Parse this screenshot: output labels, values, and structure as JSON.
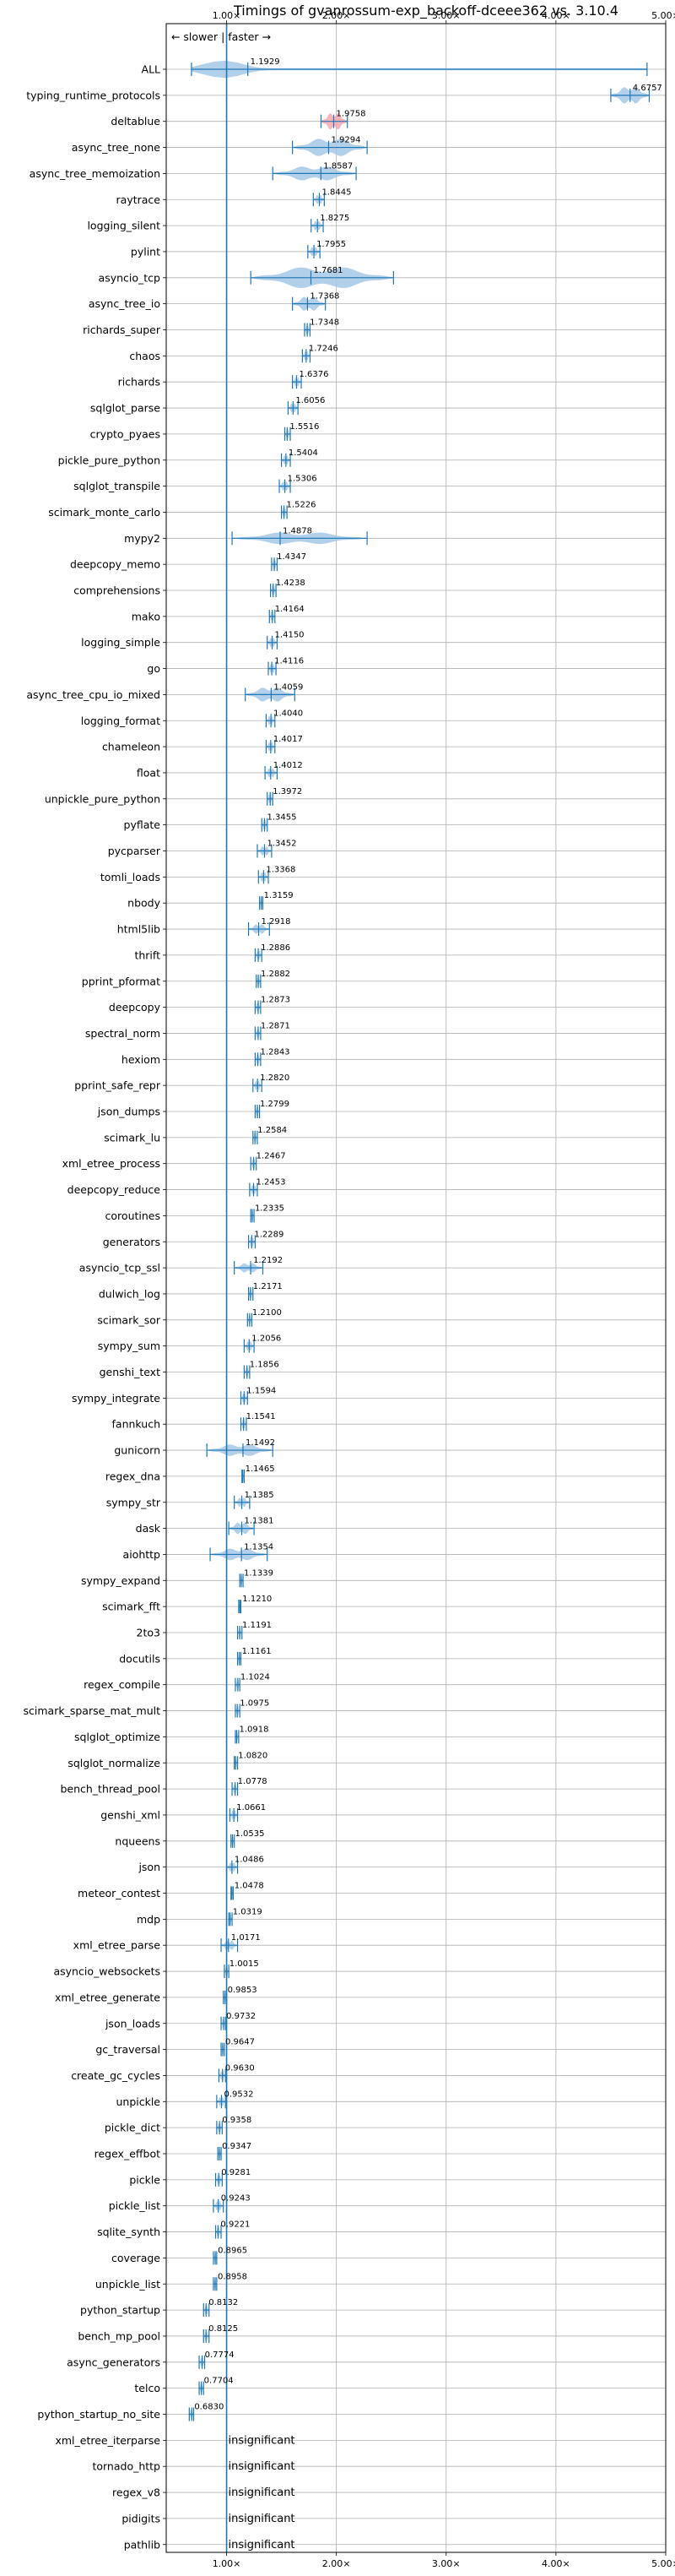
{
  "chart_data": {
    "type": "violin",
    "title": "Timings of gvanrossum-exp_backoff-dceee362 vs. 3.10.4",
    "direction_label": "← slower | faster →",
    "xlim": [
      0.45,
      5.0
    ],
    "xticks": [
      1.0,
      2.0,
      3.0,
      4.0,
      5.0
    ],
    "xtick_labels": [
      "1.00×",
      "2.00×",
      "3.00×",
      "4.00×",
      "5.00×"
    ],
    "reference_line": 1.0,
    "insignificant_label": "insignificant",
    "colors": {
      "violin": "#a6c8e6",
      "line": "#1f77b4",
      "highlight": "#f4a6ae",
      "grid": "#b0b0b0"
    },
    "benchmarks": [
      {
        "name": "ALL",
        "value": 1.1929,
        "label": "1.1929",
        "min": 0.68,
        "max": 4.83,
        "w": 0.7,
        "kind": "all"
      },
      {
        "name": "typing_runtime_protocols",
        "value": 4.6757,
        "label": "4.6757",
        "min": 4.5,
        "max": 4.85,
        "w": 0.7
      },
      {
        "name": "deltablue",
        "value": 1.9758,
        "label": "1.9758",
        "min": 1.86,
        "max": 2.1,
        "w": 0.7,
        "highlight": true
      },
      {
        "name": "async_tree_none",
        "value": 1.9294,
        "label": "1.9294",
        "min": 1.6,
        "max": 2.28,
        "w": 0.75
      },
      {
        "name": "async_tree_memoization",
        "value": 1.8587,
        "label": "1.8587",
        "min": 1.42,
        "max": 2.18,
        "w": 0.6
      },
      {
        "name": "raytrace",
        "value": 1.8445,
        "label": "1.8445",
        "min": 1.79,
        "max": 1.89,
        "w": 0.4
      },
      {
        "name": "logging_silent",
        "value": 1.8275,
        "label": "1.8275",
        "min": 1.77,
        "max": 1.88,
        "w": 0.4
      },
      {
        "name": "pylint",
        "value": 1.7955,
        "label": "1.7955",
        "min": 1.74,
        "max": 1.85,
        "w": 0.4
      },
      {
        "name": "asyncio_tcp",
        "value": 1.7681,
        "label": "1.7681",
        "min": 1.22,
        "max": 2.52,
        "w": 0.9
      },
      {
        "name": "async_tree_io",
        "value": 1.7368,
        "label": "1.7368",
        "min": 1.6,
        "max": 1.9,
        "w": 0.6
      },
      {
        "name": "richards_super",
        "value": 1.7348,
        "label": "1.7348",
        "min": 1.71,
        "max": 1.76,
        "w": 0.4
      },
      {
        "name": "chaos",
        "value": 1.7246,
        "label": "1.7246",
        "min": 1.69,
        "max": 1.76,
        "w": 0.4
      },
      {
        "name": "richards",
        "value": 1.6376,
        "label": "1.6376",
        "min": 1.6,
        "max": 1.68,
        "w": 0.4
      },
      {
        "name": "sqlglot_parse",
        "value": 1.6056,
        "label": "1.6056",
        "min": 1.56,
        "max": 1.65,
        "w": 0.4
      },
      {
        "name": "crypto_pyaes",
        "value": 1.5516,
        "label": "1.5516",
        "min": 1.53,
        "max": 1.58,
        "w": 0.4
      },
      {
        "name": "pickle_pure_python",
        "value": 1.5404,
        "label": "1.5404",
        "min": 1.5,
        "max": 1.58,
        "w": 0.4
      },
      {
        "name": "sqlglot_transpile",
        "value": 1.5306,
        "label": "1.5306",
        "min": 1.48,
        "max": 1.58,
        "w": 0.4
      },
      {
        "name": "scimark_monte_carlo",
        "value": 1.5226,
        "label": "1.5226",
        "min": 1.5,
        "max": 1.55,
        "w": 0.4
      },
      {
        "name": "mypy2",
        "value": 1.4878,
        "label": "1.4878",
        "min": 1.05,
        "max": 2.28,
        "w": 0.5
      },
      {
        "name": "deepcopy_memo",
        "value": 1.4347,
        "label": "1.4347",
        "min": 1.41,
        "max": 1.46,
        "w": 0.4
      },
      {
        "name": "comprehensions",
        "value": 1.4238,
        "label": "1.4238",
        "min": 1.4,
        "max": 1.45,
        "w": 0.4
      },
      {
        "name": "mako",
        "value": 1.4164,
        "label": "1.4164",
        "min": 1.39,
        "max": 1.44,
        "w": 0.4
      },
      {
        "name": "logging_simple",
        "value": 1.415,
        "label": "1.4150",
        "min": 1.37,
        "max": 1.46,
        "w": 0.4
      },
      {
        "name": "go",
        "value": 1.4116,
        "label": "1.4116",
        "min": 1.38,
        "max": 1.45,
        "w": 0.4
      },
      {
        "name": "async_tree_cpu_io_mixed",
        "value": 1.4059,
        "label": "1.4059",
        "min": 1.17,
        "max": 1.62,
        "w": 0.6
      },
      {
        "name": "logging_format",
        "value": 1.404,
        "label": "1.4040",
        "min": 1.36,
        "max": 1.44,
        "w": 0.4
      },
      {
        "name": "chameleon",
        "value": 1.4017,
        "label": "1.4017",
        "min": 1.36,
        "max": 1.44,
        "w": 0.4
      },
      {
        "name": "float",
        "value": 1.4012,
        "label": "1.4012",
        "min": 1.35,
        "max": 1.46,
        "w": 0.4
      },
      {
        "name": "unpickle_pure_python",
        "value": 1.3972,
        "label": "1.3972",
        "min": 1.37,
        "max": 1.42,
        "w": 0.4
      },
      {
        "name": "pyflate",
        "value": 1.3455,
        "label": "1.3455",
        "min": 1.32,
        "max": 1.37,
        "w": 0.4
      },
      {
        "name": "pycparser",
        "value": 1.3452,
        "label": "1.3452",
        "min": 1.28,
        "max": 1.41,
        "w": 0.4
      },
      {
        "name": "tomli_loads",
        "value": 1.3368,
        "label": "1.3368",
        "min": 1.29,
        "max": 1.38,
        "w": 0.4
      },
      {
        "name": "nbody",
        "value": 1.3159,
        "label": "1.3159",
        "min": 1.3,
        "max": 1.33,
        "w": 0.4
      },
      {
        "name": "html5lib",
        "value": 1.2918,
        "label": "1.2918",
        "min": 1.2,
        "max": 1.39,
        "w": 0.4
      },
      {
        "name": "thrift",
        "value": 1.2886,
        "label": "1.2886",
        "min": 1.26,
        "max": 1.32,
        "w": 0.4
      },
      {
        "name": "pprint_pformat",
        "value": 1.2882,
        "label": "1.2882",
        "min": 1.27,
        "max": 1.31,
        "w": 0.4
      },
      {
        "name": "deepcopy",
        "value": 1.2873,
        "label": "1.2873",
        "min": 1.26,
        "max": 1.31,
        "w": 0.4
      },
      {
        "name": "spectral_norm",
        "value": 1.2871,
        "label": "1.2871",
        "min": 1.26,
        "max": 1.31,
        "w": 0.4
      },
      {
        "name": "hexiom",
        "value": 1.2843,
        "label": "1.2843",
        "min": 1.26,
        "max": 1.31,
        "w": 0.4
      },
      {
        "name": "pprint_safe_repr",
        "value": 1.282,
        "label": "1.2820",
        "min": 1.24,
        "max": 1.32,
        "w": 0.4
      },
      {
        "name": "json_dumps",
        "value": 1.2799,
        "label": "1.2799",
        "min": 1.26,
        "max": 1.3,
        "w": 0.4
      },
      {
        "name": "scimark_lu",
        "value": 1.2584,
        "label": "1.2584",
        "min": 1.24,
        "max": 1.28,
        "w": 0.4
      },
      {
        "name": "xml_etree_process",
        "value": 1.2467,
        "label": "1.2467",
        "min": 1.22,
        "max": 1.27,
        "w": 0.4
      },
      {
        "name": "deepcopy_reduce",
        "value": 1.2453,
        "label": "1.2453",
        "min": 1.21,
        "max": 1.28,
        "w": 0.4
      },
      {
        "name": "coroutines",
        "value": 1.2335,
        "label": "1.2335",
        "min": 1.22,
        "max": 1.25,
        "w": 0.4
      },
      {
        "name": "generators",
        "value": 1.2289,
        "label": "1.2289",
        "min": 1.2,
        "max": 1.26,
        "w": 0.4
      },
      {
        "name": "asyncio_tcp_ssl",
        "value": 1.2192,
        "label": "1.2192",
        "min": 1.07,
        "max": 1.33,
        "w": 0.4
      },
      {
        "name": "dulwich_log",
        "value": 1.2171,
        "label": "1.2171",
        "min": 1.2,
        "max": 1.24,
        "w": 0.4
      },
      {
        "name": "scimark_sor",
        "value": 1.21,
        "label": "1.2100",
        "min": 1.19,
        "max": 1.23,
        "w": 0.4
      },
      {
        "name": "sympy_sum",
        "value": 1.2056,
        "label": "1.2056",
        "min": 1.16,
        "max": 1.25,
        "w": 0.4
      },
      {
        "name": "genshi_text",
        "value": 1.1856,
        "label": "1.1856",
        "min": 1.16,
        "max": 1.21,
        "w": 0.4
      },
      {
        "name": "sympy_integrate",
        "value": 1.1594,
        "label": "1.1594",
        "min": 1.13,
        "max": 1.19,
        "w": 0.4
      },
      {
        "name": "fannkuch",
        "value": 1.1541,
        "label": "1.1541",
        "min": 1.13,
        "max": 1.18,
        "w": 0.4
      },
      {
        "name": "gunicorn",
        "value": 1.1492,
        "label": "1.1492",
        "min": 0.82,
        "max": 1.42,
        "w": 0.5
      },
      {
        "name": "regex_dna",
        "value": 1.1465,
        "label": "1.1465",
        "min": 1.14,
        "max": 1.16,
        "w": 0.4
      },
      {
        "name": "sympy_str",
        "value": 1.1385,
        "label": "1.1385",
        "min": 1.07,
        "max": 1.21,
        "w": 0.4
      },
      {
        "name": "dask",
        "value": 1.1381,
        "label": "1.1381",
        "min": 1.02,
        "max": 1.25,
        "w": 0.5
      },
      {
        "name": "aiohttp",
        "value": 1.1354,
        "label": "1.1354",
        "min": 0.85,
        "max": 1.37,
        "w": 0.5
      },
      {
        "name": "sympy_expand",
        "value": 1.1339,
        "label": "1.1339",
        "min": 1.12,
        "max": 1.15,
        "w": 0.4
      },
      {
        "name": "scimark_fft",
        "value": 1.121,
        "label": "1.1210",
        "min": 1.11,
        "max": 1.13,
        "w": 0.4
      },
      {
        "name": "2to3",
        "value": 1.1191,
        "label": "1.1191",
        "min": 1.1,
        "max": 1.14,
        "w": 0.4
      },
      {
        "name": "docutils",
        "value": 1.1161,
        "label": "1.1161",
        "min": 1.1,
        "max": 1.13,
        "w": 0.4
      },
      {
        "name": "regex_compile",
        "value": 1.1024,
        "label": "1.1024",
        "min": 1.08,
        "max": 1.12,
        "w": 0.4
      },
      {
        "name": "scimark_sparse_mat_mult",
        "value": 1.0975,
        "label": "1.0975",
        "min": 1.08,
        "max": 1.12,
        "w": 0.4
      },
      {
        "name": "sqlglot_optimize",
        "value": 1.0918,
        "label": "1.0918",
        "min": 1.08,
        "max": 1.11,
        "w": 0.4
      },
      {
        "name": "sqlglot_normalize",
        "value": 1.082,
        "label": "1.0820",
        "min": 1.07,
        "max": 1.1,
        "w": 0.4
      },
      {
        "name": "bench_thread_pool",
        "value": 1.0778,
        "label": "1.0778",
        "min": 1.05,
        "max": 1.1,
        "w": 0.4
      },
      {
        "name": "genshi_xml",
        "value": 1.0661,
        "label": "1.0661",
        "min": 1.03,
        "max": 1.1,
        "w": 0.4
      },
      {
        "name": "nqueens",
        "value": 1.0535,
        "label": "1.0535",
        "min": 1.04,
        "max": 1.07,
        "w": 0.4
      },
      {
        "name": "json",
        "value": 1.0486,
        "label": "1.0486",
        "min": 1.0,
        "max": 1.1,
        "w": 0.4
      },
      {
        "name": "meteor_contest",
        "value": 1.0478,
        "label": "1.0478",
        "min": 1.04,
        "max": 1.06,
        "w": 0.4
      },
      {
        "name": "mdp",
        "value": 1.0319,
        "label": "1.0319",
        "min": 1.02,
        "max": 1.05,
        "w": 0.4
      },
      {
        "name": "xml_etree_parse",
        "value": 1.0171,
        "label": "1.0171",
        "min": 0.95,
        "max": 1.1,
        "w": 0.4
      },
      {
        "name": "asyncio_websockets",
        "value": 1.0015,
        "label": "1.0015",
        "min": 0.98,
        "max": 1.02,
        "w": 0.4
      },
      {
        "name": "xml_etree_generate",
        "value": 0.9853,
        "label": "0.9853",
        "min": 0.97,
        "max": 1.0,
        "w": 0.4
      },
      {
        "name": "json_loads",
        "value": 0.9732,
        "label": "0.9732",
        "min": 0.95,
        "max": 0.99,
        "w": 0.4
      },
      {
        "name": "gc_traversal",
        "value": 0.9647,
        "label": "0.9647",
        "min": 0.95,
        "max": 0.98,
        "w": 0.4
      },
      {
        "name": "create_gc_cycles",
        "value": 0.963,
        "label": "0.9630",
        "min": 0.93,
        "max": 0.99,
        "w": 0.4
      },
      {
        "name": "unpickle",
        "value": 0.9532,
        "label": "0.9532",
        "min": 0.91,
        "max": 0.99,
        "w": 0.4
      },
      {
        "name": "pickle_dict",
        "value": 0.9358,
        "label": "0.9358",
        "min": 0.91,
        "max": 0.96,
        "w": 0.4
      },
      {
        "name": "regex_effbot",
        "value": 0.9347,
        "label": "0.9347",
        "min": 0.92,
        "max": 0.95,
        "w": 0.4
      },
      {
        "name": "pickle",
        "value": 0.9281,
        "label": "0.9281",
        "min": 0.9,
        "max": 0.96,
        "w": 0.4
      },
      {
        "name": "pickle_list",
        "value": 0.9243,
        "label": "0.9243",
        "min": 0.88,
        "max": 0.97,
        "w": 0.4
      },
      {
        "name": "sqlite_synth",
        "value": 0.9221,
        "label": "0.9221",
        "min": 0.9,
        "max": 0.95,
        "w": 0.4
      },
      {
        "name": "coverage",
        "value": 0.8965,
        "label": "0.8965",
        "min": 0.88,
        "max": 0.91,
        "w": 0.4
      },
      {
        "name": "unpickle_list",
        "value": 0.8958,
        "label": "0.8958",
        "min": 0.88,
        "max": 0.91,
        "w": 0.4
      },
      {
        "name": "python_startup",
        "value": 0.8132,
        "label": "0.8132",
        "min": 0.79,
        "max": 0.84,
        "w": 0.4
      },
      {
        "name": "bench_mp_pool",
        "value": 0.8125,
        "label": "0.8125",
        "min": 0.79,
        "max": 0.84,
        "w": 0.4
      },
      {
        "name": "async_generators",
        "value": 0.7774,
        "label": "0.7774",
        "min": 0.75,
        "max": 0.8,
        "w": 0.4
      },
      {
        "name": "telco",
        "value": 0.7704,
        "label": "0.7704",
        "min": 0.75,
        "max": 0.79,
        "w": 0.4
      },
      {
        "name": "python_startup_no_site",
        "value": 0.683,
        "label": "0.6830",
        "min": 0.66,
        "max": 0.7,
        "w": 0.4
      },
      {
        "name": "xml_etree_iterparse",
        "value": null,
        "label": "",
        "insignificant": true
      },
      {
        "name": "tornado_http",
        "value": null,
        "label": "",
        "insignificant": true
      },
      {
        "name": "regex_v8",
        "value": null,
        "label": "",
        "insignificant": true
      },
      {
        "name": "pidigits",
        "value": null,
        "label": "",
        "insignificant": true
      },
      {
        "name": "pathlib",
        "value": null,
        "label": "",
        "insignificant": true
      }
    ]
  }
}
